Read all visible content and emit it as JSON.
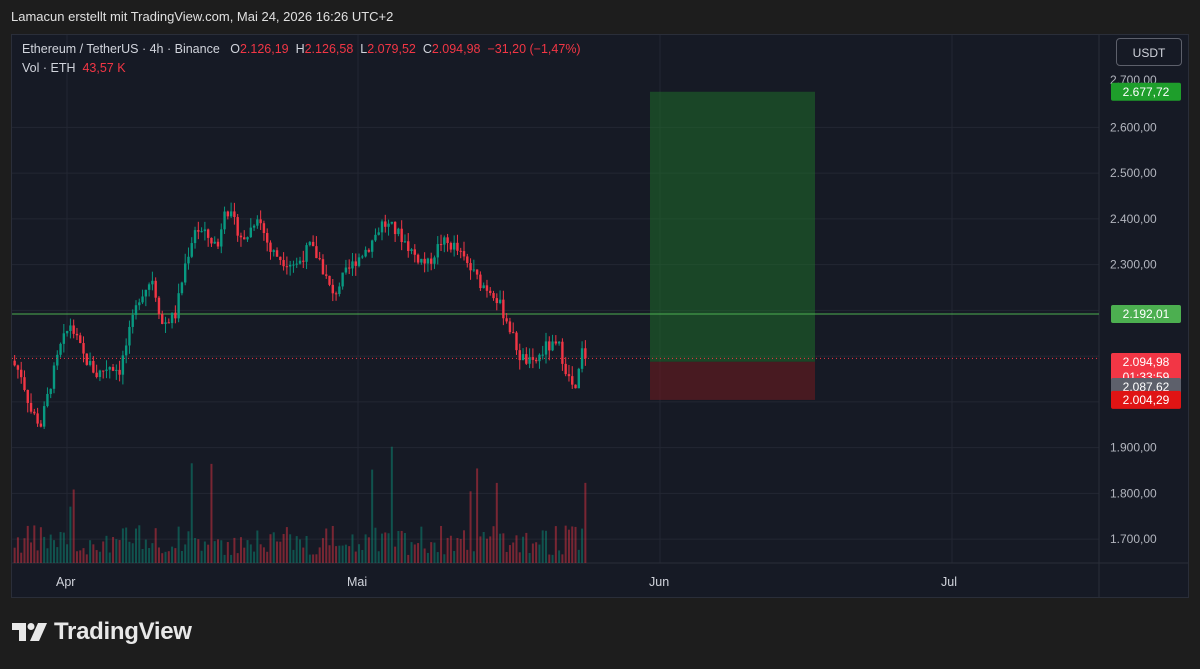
{
  "caption": "Lamacun erstellt mit TradingView.com, Mai 24, 2026 16:26 UTC+2",
  "legend": {
    "symbol": "Ethereum / TetherUS · 4h · Binance",
    "o_label": "O",
    "o_value": "2.126,19",
    "h_label": "H",
    "h_value": "2.126,58",
    "l_label": "L",
    "l_value": "2.079,52",
    "c_label": "C",
    "c_value": "2.094,98",
    "change": "−31,20 (−1,47%)",
    "vol_label": "Vol · ETH",
    "vol_value": "43,57 K"
  },
  "currency": "USDT",
  "brand": "TradingView",
  "colors": {
    "up": "#089981",
    "down": "#f23645",
    "background": "#161a25",
    "target": "#1f8a2b",
    "stop": "#e01414",
    "level": "#4caf50"
  },
  "chart_data": {
    "type": "candlestick",
    "symbol": "ETH/USDT",
    "timeframe": "4h",
    "x_ticks": [
      "Apr",
      "Mai",
      "Jun",
      "Jul"
    ],
    "y_ticks": [
      "1.700,00",
      "1.800,00",
      "1.900,00",
      "2.300,00",
      "2.400,00",
      "2.500,00",
      "2.600,00"
    ],
    "y_tick_values": [
      1700,
      1800,
      1900,
      2300,
      2400,
      2500,
      2600
    ],
    "y_range": [
      1650,
      2710
    ],
    "price_path": [
      [
        0,
        2090
      ],
      [
        3,
        2060
      ],
      [
        6,
        1980
      ],
      [
        9,
        1950
      ],
      [
        12,
        2040
      ],
      [
        15,
        2120
      ],
      [
        18,
        2170
      ],
      [
        22,
        2100
      ],
      [
        26,
        2060
      ],
      [
        30,
        2080
      ],
      [
        33,
        2070
      ],
      [
        36,
        2150
      ],
      [
        39,
        2230
      ],
      [
        43,
        2270
      ],
      [
        46,
        2170
      ],
      [
        50,
        2190
      ],
      [
        53,
        2300
      ],
      [
        56,
        2380
      ],
      [
        60,
        2360
      ],
      [
        63,
        2340
      ],
      [
        65,
        2430
      ],
      [
        68,
        2390
      ],
      [
        71,
        2350
      ],
      [
        75,
        2410
      ],
      [
        79,
        2330
      ],
      [
        83,
        2310
      ],
      [
        87,
        2300
      ],
      [
        91,
        2340
      ],
      [
        94,
        2310
      ],
      [
        98,
        2230
      ],
      [
        101,
        2270
      ],
      [
        105,
        2310
      ],
      [
        109,
        2340
      ],
      [
        113,
        2390
      ],
      [
        116,
        2380
      ],
      [
        119,
        2360
      ],
      [
        123,
        2320
      ],
      [
        127,
        2300
      ],
      [
        131,
        2350
      ],
      [
        135,
        2340
      ],
      [
        139,
        2300
      ],
      [
        143,
        2260
      ],
      [
        147,
        2240
      ],
      [
        151,
        2180
      ],
      [
        155,
        2100
      ],
      [
        159,
        2080
      ],
      [
        163,
        2120
      ],
      [
        167,
        2120
      ],
      [
        170,
        2050
      ],
      [
        172,
        2020
      ],
      [
        174,
        2110
      ],
      [
        175,
        2095
      ]
    ],
    "position": {
      "target": {
        "label": "2.677,72",
        "value": 2677.72
      },
      "entry": {
        "label": "2.087,62",
        "value": 2087.62
      },
      "stop": {
        "label": "2.004,29",
        "value": 2004.29
      }
    },
    "level_line": {
      "label": "2.192,01",
      "value": 2192.01
    },
    "last_price": {
      "label": "2.094,98",
      "value": 2094.98,
      "countdown": "01:33:59"
    }
  }
}
